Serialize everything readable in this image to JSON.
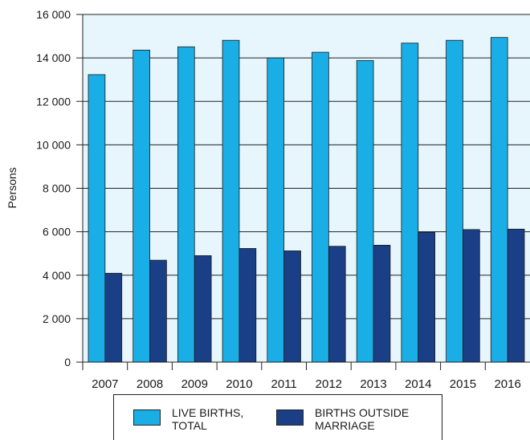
{
  "chart_data": {
    "type": "bar",
    "ylabel": "Persons",
    "categories": [
      "2007",
      "2008",
      "2009",
      "2010",
      "2011",
      "2012",
      "2013",
      "2014",
      "2015",
      "2016"
    ],
    "series": [
      {
        "name": "LIVE BIRTHS,\nTOTAL",
        "color": "#1aaee6",
        "values": [
          13230,
          14360,
          14510,
          14810,
          14000,
          14260,
          13880,
          14680,
          14810,
          14940
        ]
      },
      {
        "name": "BIRTHS OUTSIDE\nMARRIAGE",
        "color": "#1b3f87",
        "values": [
          4090,
          4690,
          4900,
          5230,
          5120,
          5330,
          5380,
          5970,
          6100,
          6120
        ]
      }
    ],
    "ylim": [
      0,
      16000
    ],
    "yticks": [
      0,
      2000,
      4000,
      6000,
      8000,
      10000,
      12000,
      14000,
      16000
    ],
    "ytick_labels": [
      "0",
      "2 000",
      "4 000",
      "6 000",
      "8 000",
      "10 000",
      "12 000",
      "14 000",
      "16 000"
    ],
    "grid": true,
    "plot_background": "#e6f6fc",
    "legend_position": "bottom"
  }
}
